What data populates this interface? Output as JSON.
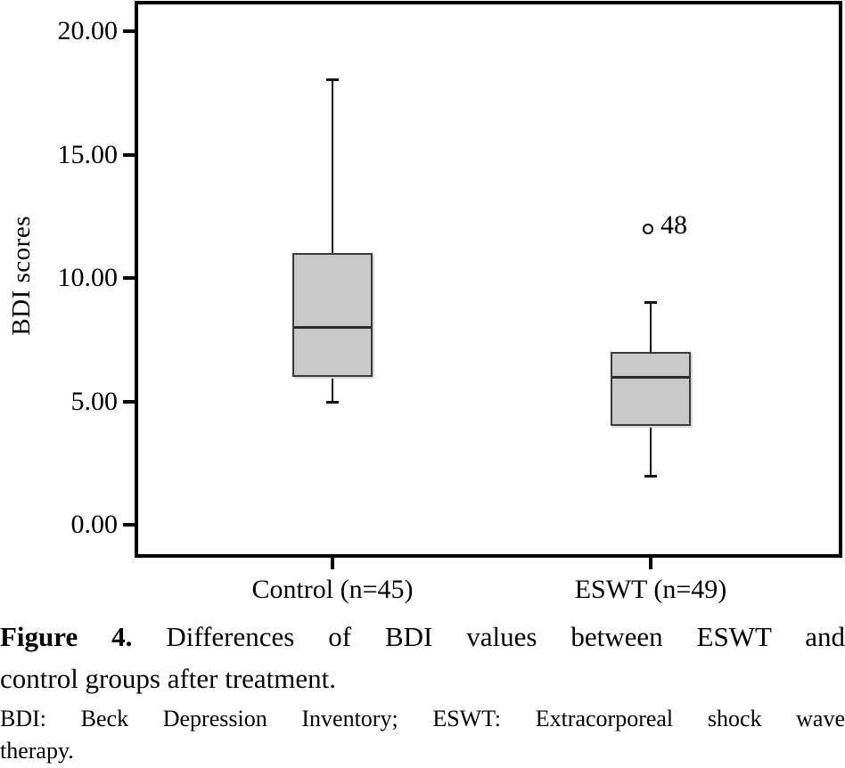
{
  "figure": {
    "caption_label": "Figure 4.",
    "caption_line1": "Differences of BDI values between ESWT and",
    "caption_line2": "control groups after treatment.",
    "footnote_line1": "BDI: Beck Depression Inventory; ESWT: Extracorporeal shock wave",
    "footnote_line2": "therapy."
  },
  "chart_data": {
    "type": "boxplot",
    "title": "",
    "xlabel": "",
    "ylabel": "BDI scores",
    "ylim": [
      0,
      20
    ],
    "ytick_values": [
      0,
      5,
      10,
      15,
      20
    ],
    "ytick_labels": [
      "0.00",
      "5.00",
      "10.00",
      "15.00",
      "20.00"
    ],
    "categories": [
      "Control (n=45)",
      "ESWT (n=49)"
    ],
    "series": [
      {
        "label": "Control (n=45)",
        "whisker_low": 5,
        "q1": 6,
        "median": 8,
        "q3": 11,
        "whisker_high": 18,
        "outliers": []
      },
      {
        "label": "ESWT (n=49)",
        "whisker_low": 2,
        "q1": 4,
        "median": 6,
        "q3": 7,
        "whisker_high": 9,
        "outliers": [
          {
            "value": 12,
            "label": "48"
          }
        ]
      }
    ],
    "grid": false,
    "legend": "none",
    "colors": {
      "box_fill": "#c9c9c9",
      "box_border": "#3a3a3a",
      "line": "#000000"
    }
  }
}
